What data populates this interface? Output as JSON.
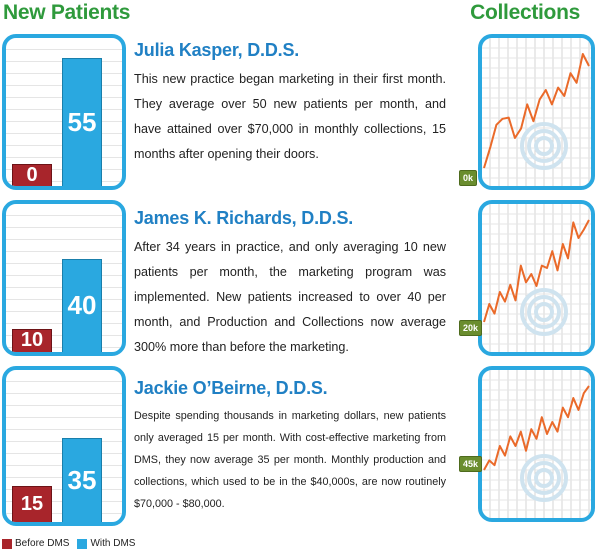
{
  "headers": {
    "left": "New Patients",
    "right": "Collections"
  },
  "legend": [
    {
      "label": "Before DMS",
      "color": "#a8252b"
    },
    {
      "label": "With DMS",
      "color": "#2aa8e0"
    }
  ],
  "entries": [
    {
      "name": "Julia Kasper, D.D.S.",
      "text": "This new practice began marketing in their first month.  They average over 50 new patients per month, and have attained over $70,000 in monthly collections, 15 months after opening their doors.",
      "collections_tag": "0k"
    },
    {
      "name": "James K. Richards, D.D.S.",
      "text": "After 34 years in practice, and only averaging 10 new patients per month, the marketing program was implemented.  New patients increased to over 40 per month, and Production and Collections now average 300% more than before the marketing.",
      "collections_tag": "20k"
    },
    {
      "name": "Jackie O’Beirne, D.D.S.",
      "text": "Despite spending thousands in marketing dollars, new patients only averaged 15 per month. With cost-effective marketing from DMS, they now average 35 per month. Monthly production and collections, which used to be in the $40,000s, are now routinely $70,000 - $80,000.",
      "collections_tag": "45k"
    }
  ],
  "chart_data": [
    {
      "type": "bar",
      "categories": [
        "Before DMS",
        "With DMS"
      ],
      "series": [
        {
          "values": [
            0,
            55
          ]
        }
      ],
      "value_labels": [
        "0",
        "55"
      ],
      "ylim": [
        0,
        60
      ]
    },
    {
      "type": "bar",
      "categories": [
        "Before DMS",
        "With DMS"
      ],
      "series": [
        {
          "values": [
            10,
            40
          ]
        }
      ],
      "value_labels": [
        "10",
        "40"
      ],
      "ylim": [
        0,
        60
      ]
    },
    {
      "type": "bar",
      "categories": [
        "Before DMS",
        "With DMS"
      ],
      "series": [
        {
          "values": [
            15,
            35
          ]
        }
      ],
      "value_labels": [
        "15",
        "35"
      ],
      "ylim": [
        0,
        60
      ]
    },
    {
      "type": "line",
      "series": [
        {
          "values": [
            0.05,
            0.22,
            0.41,
            0.46,
            0.47,
            0.3,
            0.38,
            0.58,
            0.44,
            0.62,
            0.7,
            0.58,
            0.72,
            0.65,
            0.84,
            0.76,
            1.0,
            0.9
          ]
        }
      ]
    },
    {
      "type": "line",
      "series": [
        {
          "values": [
            0.15,
            0.3,
            0.22,
            0.4,
            0.32,
            0.46,
            0.33,
            0.62,
            0.48,
            0.55,
            0.45,
            0.62,
            0.6,
            0.74,
            0.58,
            0.8,
            0.68,
            0.98,
            0.85,
            0.92,
            1.0
          ]
        }
      ]
    },
    {
      "type": "line",
      "series": [
        {
          "values": [
            0.3,
            0.38,
            0.34,
            0.5,
            0.42,
            0.58,
            0.5,
            0.62,
            0.46,
            0.64,
            0.56,
            0.74,
            0.6,
            0.7,
            0.62,
            0.82,
            0.74,
            0.9,
            0.8,
            0.94,
            1.0
          ]
        }
      ]
    }
  ]
}
